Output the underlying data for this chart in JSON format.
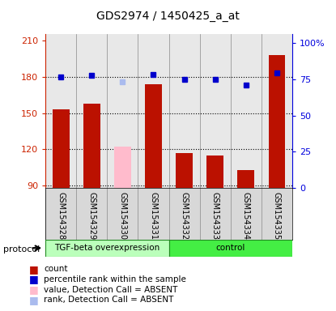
{
  "title": "GDS2974 / 1450425_a_at",
  "samples": [
    "GSM154328",
    "GSM154329",
    "GSM154330",
    "GSM154331",
    "GSM154332",
    "GSM154333",
    "GSM154334",
    "GSM154335"
  ],
  "bar_values": [
    153,
    158,
    122,
    174,
    117,
    115,
    103,
    198
  ],
  "bar_colors": [
    "#bb1100",
    "#bb1100",
    "#ffbbcc",
    "#bb1100",
    "#bb1100",
    "#bb1100",
    "#bb1100",
    "#bb1100"
  ],
  "dot_values": [
    180,
    181,
    176,
    182,
    178,
    178,
    173,
    183
  ],
  "dot_colors": [
    "#0000cc",
    "#0000cc",
    "#aabbee",
    "#0000cc",
    "#0000cc",
    "#0000cc",
    "#0000cc",
    "#0000cc"
  ],
  "ylim_left": [
    88,
    215
  ],
  "yticks_left": [
    90,
    120,
    150,
    180,
    210
  ],
  "yticks_right": [
    0,
    25,
    50,
    75,
    100
  ],
  "hlines": [
    90,
    120,
    150,
    180
  ],
  "legend_items": [
    {
      "label": "count",
      "color": "#bb1100"
    },
    {
      "label": "percentile rank within the sample",
      "color": "#0000cc"
    },
    {
      "label": "value, Detection Call = ABSENT",
      "color": "#ffbbcc"
    },
    {
      "label": "rank, Detection Call = ABSENT",
      "color": "#aabbee"
    }
  ],
  "protocol_groups": [
    {
      "label": "TGF-beta overexpression",
      "n": 4,
      "color": "#bbffbb"
    },
    {
      "label": "control",
      "n": 4,
      "color": "#44ee44"
    }
  ],
  "left_tick_color": "#cc2200",
  "right_tick_color": "#0000dd",
  "bg_color": "#e8e8e8",
  "bar_width": 0.55
}
